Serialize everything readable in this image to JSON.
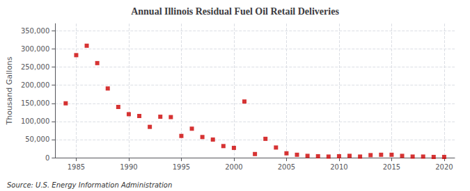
{
  "chart_data": {
    "type": "scatter",
    "title": "Annual Illinois Residual Fuel Oil Retail Deliveries",
    "ylabel": "Thousand Gallons",
    "source": "Source: U.S. Energy Information Administration",
    "color": "#cc0000",
    "marker": "square",
    "grid": true,
    "xlim": [
      1983,
      2021
    ],
    "xticks": [
      1985,
      1990,
      1995,
      2000,
      2005,
      2010,
      2015,
      2020
    ],
    "ylim": [
      0,
      370000
    ],
    "yticks": [
      0,
      {
        "value": 50000,
        "label": "50,000"
      },
      {
        "value": 100000,
        "label": "100,000"
      },
      {
        "value": 150000,
        "label": "150,000"
      },
      {
        "value": 200000,
        "label": "200,000"
      },
      {
        "value": 250000,
        "label": "250,000"
      },
      {
        "value": 300000,
        "label": "300,000"
      },
      {
        "value": 350000,
        "label": "350,000"
      }
    ],
    "x": [
      1984,
      1985,
      1986,
      1987,
      1988,
      1989,
      1990,
      1991,
      1992,
      1993,
      1994,
      1995,
      1996,
      1997,
      1998,
      1999,
      2000,
      2001,
      2002,
      2003,
      2004,
      2005,
      2006,
      2007,
      2008,
      2009,
      2010,
      2011,
      2012,
      2013,
      2014,
      2015,
      2016,
      2017,
      2018,
      2019,
      2020
    ],
    "values": [
      150000,
      283000,
      309000,
      261000,
      191000,
      140000,
      120000,
      115000,
      85000,
      113000,
      112000,
      60000,
      80000,
      57000,
      50000,
      32000,
      27000,
      155000,
      10000,
      52000,
      28000,
      12000,
      8000,
      5000,
      4000,
      3000,
      4000,
      5000,
      3000,
      7000,
      8000,
      8000,
      5000,
      3000,
      3000,
      2000,
      2000
    ]
  }
}
